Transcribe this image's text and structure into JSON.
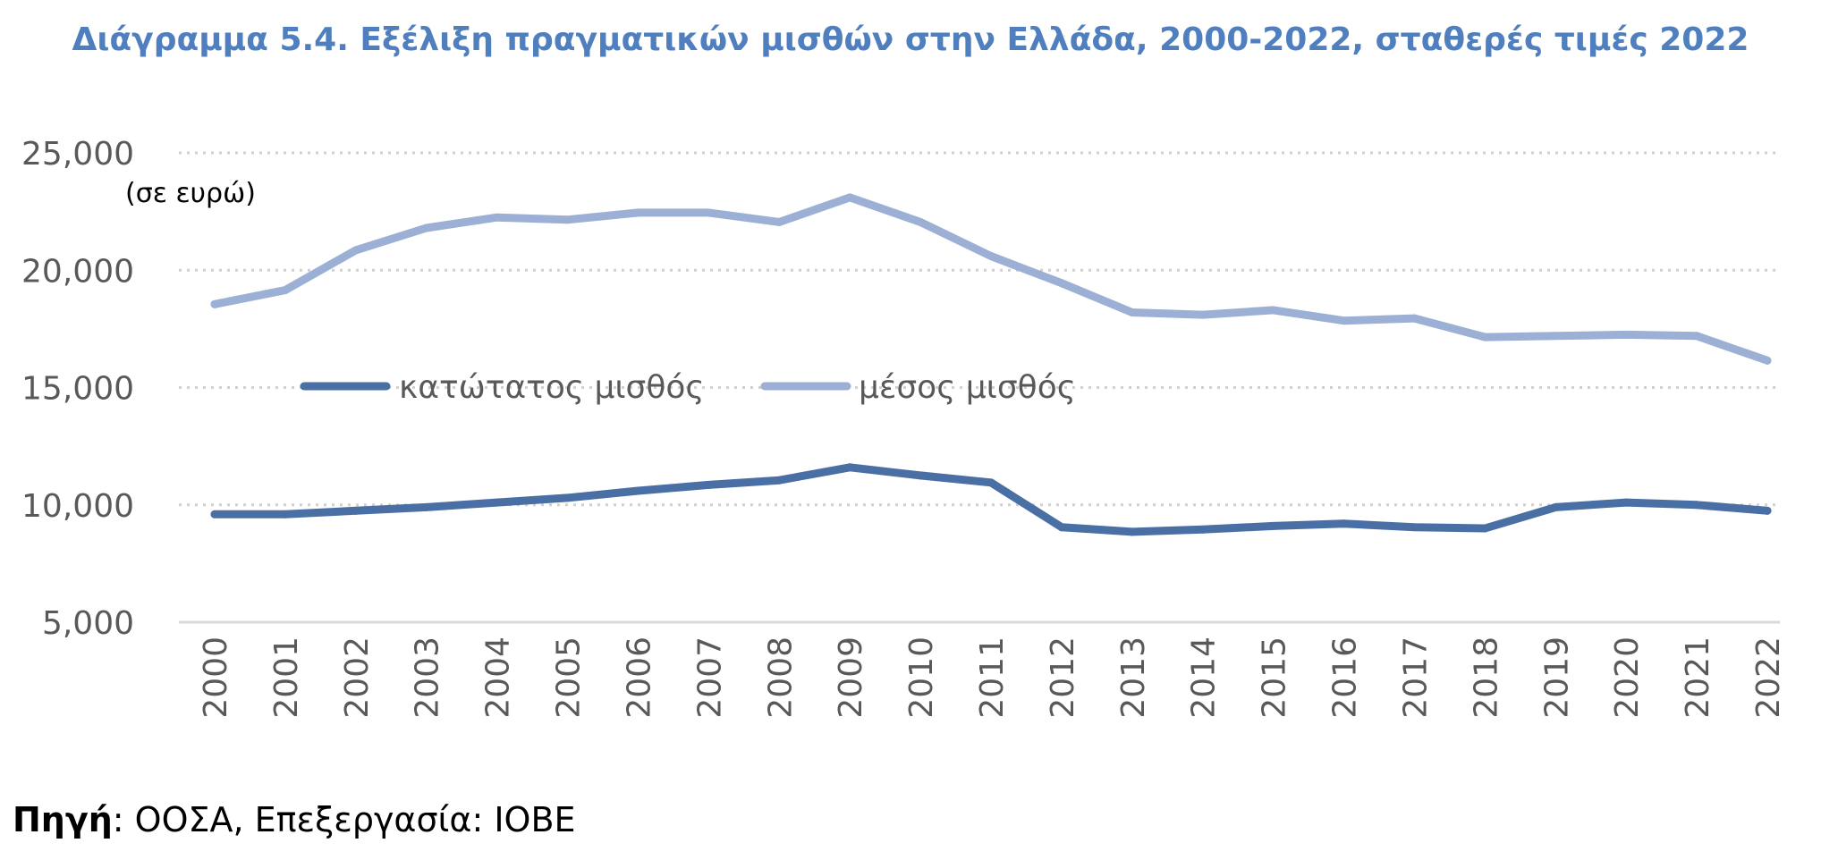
{
  "chart_data": {
    "type": "line",
    "title": "Διάγραμμα 5.4. Εξέλιξη πραγματικών μισθών στην Ελλάδα, 2000-2022, σταθερές τιμές 2022",
    "unit_label": "(σε ευρώ)",
    "xlabel": "",
    "ylabel": "",
    "ylim": [
      5000,
      25000
    ],
    "y_ticks": [
      5000,
      10000,
      15000,
      20000,
      25000
    ],
    "y_tick_labels": [
      "5,000",
      "10,000",
      "15,000",
      "20,000",
      "25,000"
    ],
    "grid": true,
    "legend_position": "middle-left",
    "x": [
      "2000",
      "2001",
      "2002",
      "2003",
      "2004",
      "2005",
      "2006",
      "2007",
      "2008",
      "2009",
      "2010",
      "2011",
      "2012",
      "2013",
      "2014",
      "2015",
      "2016",
      "2017",
      "2018",
      "2019",
      "2020",
      "2021",
      "2022"
    ],
    "series": [
      {
        "name": "κατώτατος μισθός",
        "color": "#4a6fa5",
        "values": [
          9600,
          9600,
          9750,
          9900,
          10100,
          10300,
          10600,
          10850,
          11050,
          11600,
          11250,
          10950,
          9050,
          8850,
          8950,
          9100,
          9200,
          9050,
          9000,
          9900,
          10100,
          10000,
          9750
        ]
      },
      {
        "name": "μέσος μισθός",
        "color": "#9bb0d4",
        "values": [
          18550,
          19150,
          20850,
          21800,
          22250,
          22150,
          22450,
          22450,
          22050,
          23100,
          22050,
          20600,
          19450,
          18200,
          18100,
          18300,
          17850,
          17950,
          17150,
          17200,
          17250,
          17200,
          16150
        ]
      }
    ]
  },
  "source": {
    "label": "Πηγή",
    "text": ": ΟΟΣΑ, Επεξεργασία: ΙΟΒΕ"
  }
}
